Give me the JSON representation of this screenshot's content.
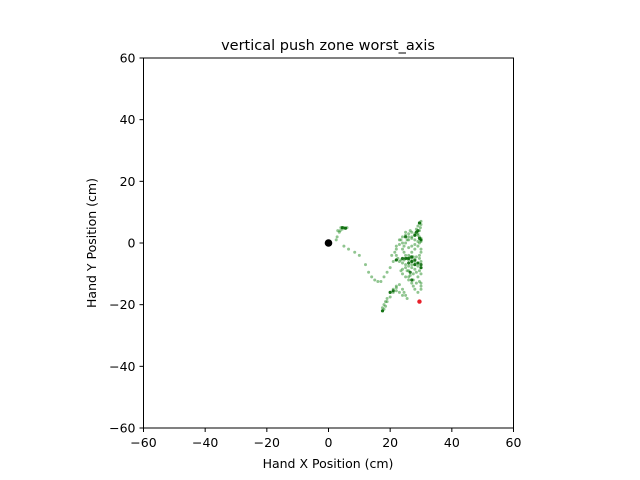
{
  "chart_data": {
    "type": "scatter",
    "title": "vertical push zone worst_axis",
    "xlabel": "Hand X Position (cm)",
    "ylabel": "Hand Y Position (cm)",
    "xlim": [
      -60,
      60
    ],
    "ylim": [
      -60,
      60
    ],
    "xticks": [
      -60,
      -40,
      -20,
      0,
      20,
      40,
      60
    ],
    "yticks": [
      -60,
      -40,
      -20,
      0,
      20,
      40,
      60
    ],
    "grid": false,
    "colors": {
      "trail": "#228b22",
      "trail_dark": "#006400",
      "origin": "#000000",
      "target": "#e8202a"
    },
    "series": [
      {
        "role": "trail",
        "points": [
          [
            3,
            4
          ],
          [
            4,
            5
          ],
          [
            5,
            5
          ],
          [
            6,
            5
          ],
          [
            5.5,
            4.8
          ],
          [
            4.5,
            4.5
          ],
          [
            3.8,
            4
          ],
          [
            3.5,
            3.5
          ],
          [
            2.8,
            2
          ],
          [
            2.5,
            1
          ],
          [
            5,
            -1
          ],
          [
            6.5,
            -2
          ],
          [
            8.5,
            -3
          ],
          [
            10,
            -4
          ],
          [
            12,
            -7
          ],
          [
            13,
            -9.5
          ],
          [
            14,
            -11
          ],
          [
            15,
            -12
          ],
          [
            16,
            -12.5
          ],
          [
            17,
            -12.5
          ],
          [
            18,
            -11
          ],
          [
            19,
            -9.5
          ],
          [
            20,
            -8
          ],
          [
            21,
            -6
          ],
          [
            22,
            -4
          ],
          [
            22,
            -2
          ],
          [
            23,
            -0.5
          ],
          [
            23.5,
            1
          ],
          [
            24,
            2
          ],
          [
            25,
            2.5
          ],
          [
            26,
            3
          ],
          [
            27,
            3.5
          ],
          [
            28,
            3
          ],
          [
            29,
            2.5
          ],
          [
            29.5,
            2
          ],
          [
            30,
            1.5
          ],
          [
            30,
            1
          ],
          [
            29,
            0.5
          ],
          [
            28,
            1
          ],
          [
            27,
            1.5
          ],
          [
            26,
            2
          ],
          [
            25.5,
            1
          ],
          [
            25,
            0
          ],
          [
            24.5,
            -1
          ],
          [
            24,
            -2
          ],
          [
            24.5,
            -3
          ],
          [
            25,
            -4
          ],
          [
            25.5,
            -5
          ],
          [
            26,
            -5.5
          ],
          [
            27,
            -6
          ],
          [
            28,
            -6
          ],
          [
            29,
            -6.5
          ],
          [
            30,
            -6
          ],
          [
            29.5,
            -5
          ],
          [
            28.5,
            -4.5
          ],
          [
            27.5,
            -4.5
          ],
          [
            26.5,
            -4.5
          ],
          [
            25.5,
            -5
          ],
          [
            24.5,
            -5.5
          ],
          [
            23.5,
            -5.5
          ],
          [
            22.5,
            -5
          ],
          [
            22,
            -5.5
          ],
          [
            23,
            -6
          ],
          [
            24,
            -6.5
          ],
          [
            25,
            -7
          ],
          [
            26,
            -7.5
          ],
          [
            27,
            -7
          ],
          [
            28,
            -7
          ],
          [
            29,
            -7.5
          ],
          [
            30,
            -8
          ],
          [
            29.5,
            -9
          ],
          [
            28.5,
            -9.5
          ],
          [
            27.5,
            -10
          ],
          [
            26.5,
            -10.5
          ],
          [
            26,
            -11
          ],
          [
            25.5,
            -9
          ],
          [
            25,
            -8
          ],
          [
            24,
            -8.5
          ],
          [
            23.5,
            -9
          ],
          [
            24,
            -10
          ],
          [
            25,
            -11
          ],
          [
            26,
            -12
          ],
          [
            27,
            -13
          ],
          [
            27.5,
            -14
          ],
          [
            28,
            -15
          ],
          [
            29,
            -16
          ],
          [
            30,
            -15
          ],
          [
            30,
            -14
          ],
          [
            30,
            -13
          ],
          [
            29.5,
            -12.5
          ],
          [
            28.5,
            -13
          ],
          [
            27.5,
            -12
          ],
          [
            26,
            -9
          ],
          [
            27,
            -8
          ],
          [
            28,
            -8.5
          ],
          [
            27,
            -5
          ],
          [
            26,
            -4
          ],
          [
            27,
            -3
          ],
          [
            28,
            -2
          ],
          [
            29,
            -1
          ],
          [
            29.5,
            0
          ],
          [
            30,
            0.5
          ],
          [
            29,
            3
          ],
          [
            29.5,
            4
          ],
          [
            29.8,
            5
          ],
          [
            30,
            6
          ],
          [
            30,
            7
          ],
          [
            29.5,
            6.5
          ],
          [
            29,
            5.5
          ],
          [
            28.5,
            4.5
          ],
          [
            22,
            -14
          ],
          [
            21,
            -15
          ],
          [
            20,
            -16
          ],
          [
            19,
            -18
          ],
          [
            18.5,
            -19
          ],
          [
            18,
            -20
          ],
          [
            17.5,
            -21
          ],
          [
            17.5,
            -22
          ],
          [
            18,
            -21.5
          ],
          [
            18.5,
            -20.5
          ],
          [
            19,
            -19
          ],
          [
            20,
            -17.5
          ],
          [
            21,
            -16
          ],
          [
            22,
            -14.5
          ],
          [
            23,
            -13.5
          ],
          [
            24,
            -15
          ],
          [
            24.5,
            -16
          ],
          [
            25,
            -17
          ],
          [
            25.5,
            -18
          ],
          [
            24,
            -17
          ],
          [
            23,
            -16
          ],
          [
            22,
            -15.5
          ],
          [
            27,
            -1
          ],
          [
            26,
            -1.5
          ],
          [
            28,
            -0.5
          ],
          [
            30,
            -2
          ],
          [
            30,
            -3
          ],
          [
            29.5,
            -4
          ],
          [
            24,
            0
          ],
          [
            23,
            1
          ],
          [
            22,
            -1
          ],
          [
            21.5,
            -3
          ],
          [
            20.5,
            -4
          ],
          [
            26,
            1
          ],
          [
            27,
            2
          ],
          [
            28,
            2.5
          ],
          [
            25,
            3.5
          ],
          [
            26.5,
            4
          ],
          [
            30,
            -10
          ],
          [
            29,
            -11
          ]
        ]
      },
      {
        "role": "trail-dark",
        "points": [
          [
            4.5,
            5
          ],
          [
            5.5,
            4.8
          ],
          [
            17.5,
            -22
          ],
          [
            27,
            -6
          ],
          [
            28,
            -5.5
          ],
          [
            26,
            -5
          ],
          [
            29.5,
            1.5
          ],
          [
            30,
            1
          ],
          [
            28,
            2.5
          ],
          [
            29,
            -6.5
          ],
          [
            25,
            -5
          ],
          [
            26,
            -6.5
          ],
          [
            28,
            -7
          ],
          [
            30,
            -7
          ],
          [
            29.5,
            6.5
          ],
          [
            27,
            -12
          ],
          [
            26.5,
            -9.5
          ],
          [
            20,
            -16
          ],
          [
            21,
            -15.5
          ],
          [
            22,
            -5.5
          ],
          [
            24,
            -5
          ],
          [
            29,
            4
          ],
          [
            28.5,
            3.5
          ],
          [
            30,
            -8
          ],
          [
            25,
            2
          ],
          [
            27,
            -4.5
          ]
        ]
      },
      {
        "role": "origin",
        "points": [
          [
            0,
            0
          ]
        ]
      },
      {
        "role": "target",
        "points": [
          [
            29.5,
            -19
          ]
        ]
      }
    ]
  }
}
